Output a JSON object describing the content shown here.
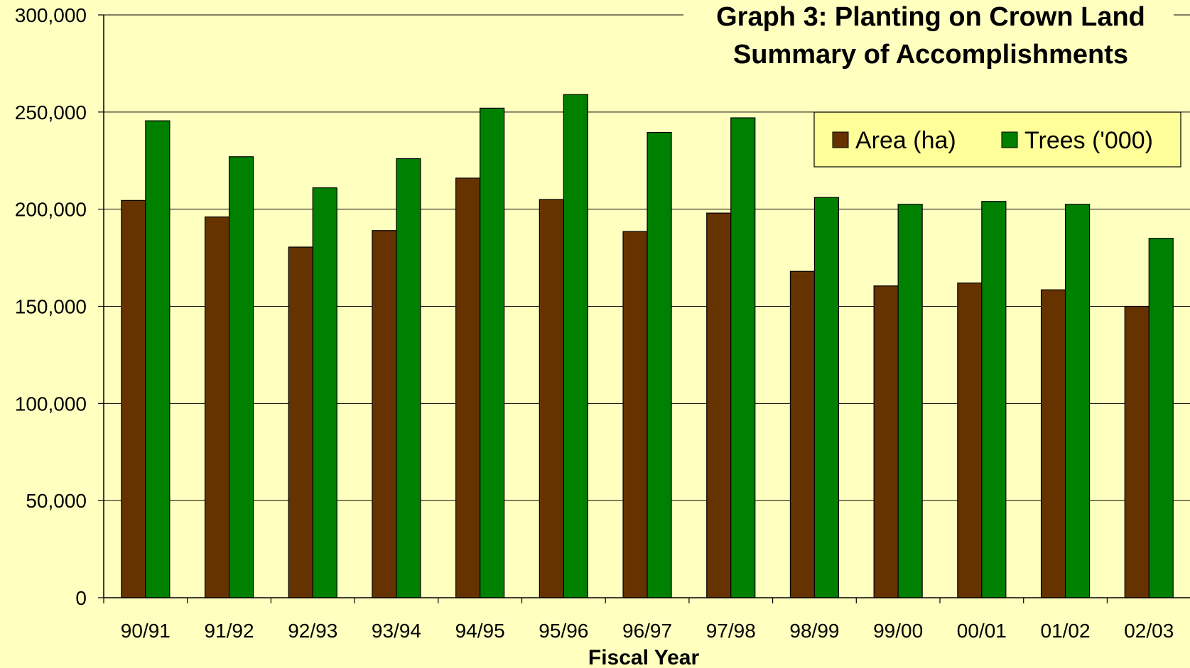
{
  "chart_data": {
    "type": "bar",
    "title": "Graph 3: Planting on Crown Land",
    "subtitle": "Summary of Accomplishments",
    "xlabel": "Fiscal Year",
    "ylabel": "",
    "ylim": [
      0,
      300000
    ],
    "yticks": [
      0,
      50000,
      100000,
      150000,
      200000,
      250000,
      300000
    ],
    "ytick_labels": [
      "0",
      "50,000",
      "100,000",
      "150,000",
      "200,000",
      "250,000",
      "300,000"
    ],
    "grid": true,
    "legend_position": "top-right",
    "categories": [
      "90/91",
      "91/92",
      "92/93",
      "93/94",
      "94/95",
      "95/96",
      "96/97",
      "97/98",
      "98/99",
      "99/00",
      "00/01",
      "01/02",
      "02/03"
    ],
    "series": [
      {
        "name": "Area (ha)",
        "color": "#663300",
        "values": [
          204500,
          196000,
          180500,
          189000,
          216000,
          205000,
          188500,
          198000,
          168000,
          160500,
          162000,
          158500,
          150000
        ]
      },
      {
        "name": "Trees ('000)",
        "color": "#008000",
        "values": [
          245500,
          227000,
          211000,
          226000,
          252000,
          259000,
          239500,
          247000,
          206000,
          202500,
          204000,
          202500,
          185000
        ]
      }
    ]
  },
  "colors": {
    "background": "#ffffc0",
    "legend_background": "#ffff99",
    "gridline": "#000000"
  }
}
